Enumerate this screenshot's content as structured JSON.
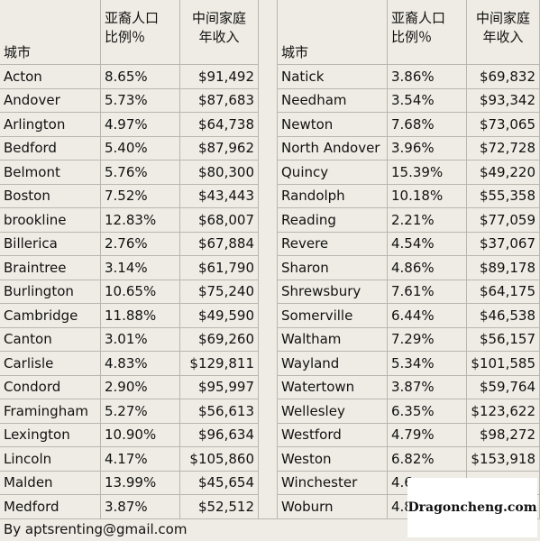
{
  "header": {
    "city": "城市",
    "share": [
      "亚裔人口",
      "比例％"
    ],
    "income": [
      "中间家庭",
      "年收入"
    ]
  },
  "left_rows": [
    [
      "Acton",
      "8.65%",
      "$91,492"
    ],
    [
      "Andover",
      "5.73%",
      "$87,683"
    ],
    [
      "Arlington",
      "4.97%",
      "$64,738"
    ],
    [
      "Bedford",
      "5.40%",
      "$87,962"
    ],
    [
      "Belmont",
      "5.76%",
      "$80,300"
    ],
    [
      "Boston",
      "7.52%",
      "$43,443"
    ],
    [
      "brookline",
      "12.83%",
      "$68,007"
    ],
    [
      "Billerica",
      "2.76%",
      "$67,884"
    ],
    [
      "Braintree",
      "3.14%",
      "$61,790"
    ],
    [
      "Burlington",
      "10.65%",
      "$75,240"
    ],
    [
      "Cambridge",
      "11.88%",
      "$49,590"
    ],
    [
      "Canton",
      "3.01%",
      "$69,260"
    ],
    [
      "Carlisle",
      "4.83%",
      "$129,811"
    ],
    [
      "Condord",
      "2.90%",
      "$95,997"
    ],
    [
      "Framingham",
      "5.27%",
      "$56,613"
    ],
    [
      "Lexington",
      "10.90%",
      "$96,634"
    ],
    [
      "Lincoln",
      "4.17%",
      "$105,860"
    ],
    [
      "Malden",
      "13.99%",
      "$45,654"
    ],
    [
      "Medford",
      "3.87%",
      "$52,512"
    ]
  ],
  "right_rows": [
    [
      "Natick",
      "3.86%",
      "$69,832"
    ],
    [
      "Needham",
      "3.54%",
      "$93,342"
    ],
    [
      "Newton",
      "7.68%",
      "$73,065"
    ],
    [
      "North Andover",
      "3.96%",
      "$72,728"
    ],
    [
      "Quincy",
      "15.39%",
      "$49,220"
    ],
    [
      "Randolph",
      "10.18%",
      "$55,358"
    ],
    [
      "Reading",
      "2.21%",
      "$77,059"
    ],
    [
      "Revere",
      "4.54%",
      "$37,067"
    ],
    [
      "Sharon",
      "4.86%",
      "$89,178"
    ],
    [
      "Shrewsbury",
      "7.61%",
      "$64,175"
    ],
    [
      "Somerville",
      "6.44%",
      "$46,538"
    ],
    [
      "Waltham",
      "7.29%",
      "$56,157"
    ],
    [
      "Wayland",
      "5.34%",
      "$101,585"
    ],
    [
      "Watertown",
      "3.87%",
      "$59,764"
    ],
    [
      "Wellesley",
      "6.35%",
      "$123,622"
    ],
    [
      "Westford",
      "4.79%",
      "$98,272"
    ],
    [
      "Weston",
      "6.82%",
      "$153,918"
    ],
    [
      "Winchester",
      "4.6"
    ],
    [
      "Woburn",
      "4.8"
    ]
  ],
  "footer": "By aptsrenting@gmail.com",
  "watermark": "Dragoncheng.com"
}
